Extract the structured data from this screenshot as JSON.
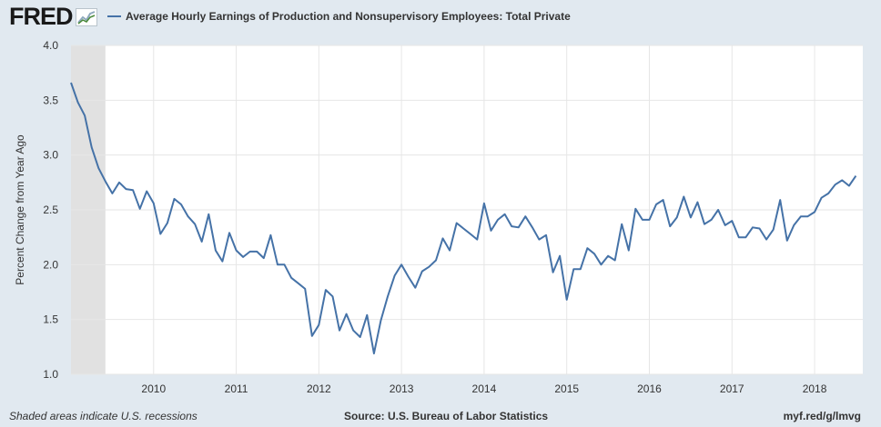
{
  "logo": {
    "text": "FRED",
    "icon": "chart-line-icon"
  },
  "legend": {
    "label": "Average Hourly Earnings of Production and Nonsupervisory Employees: Total Private",
    "color": "#4572a7"
  },
  "footer": {
    "recession_note": "Shaded areas indicate U.S. recessions",
    "source": "Source: U.S. Bureau of Labor Statistics",
    "url": "myf.red/g/lmvg"
  },
  "chart_data": {
    "type": "line",
    "title": "",
    "xlabel": "",
    "ylabel": "Percent Change from Year Ago",
    "xlim": [
      "2009-01",
      "2018-08"
    ],
    "ylim": [
      1.0,
      4.0
    ],
    "yticks": [
      "1.0",
      "1.5",
      "2.0",
      "2.5",
      "3.0",
      "3.5",
      "4.0"
    ],
    "xticks": [
      "2010",
      "2011",
      "2012",
      "2013",
      "2014",
      "2015",
      "2016",
      "2017",
      "2018"
    ],
    "grid": true,
    "recessions": [
      {
        "start": "2009-01",
        "end": "2009-06"
      }
    ],
    "series": [
      {
        "name": "Average Hourly Earnings of Production and Nonsupervisory Employees: Total Private",
        "color": "#4572a7",
        "start": "2009-01",
        "values": [
          3.66,
          3.48,
          3.36,
          3.07,
          2.88,
          2.76,
          2.65,
          2.75,
          2.69,
          2.68,
          2.51,
          2.67,
          2.56,
          2.28,
          2.38,
          2.6,
          2.55,
          2.44,
          2.37,
          2.21,
          2.46,
          2.13,
          2.03,
          2.29,
          2.13,
          2.07,
          2.12,
          2.12,
          2.06,
          2.27,
          2.0,
          2.0,
          1.88,
          1.83,
          1.78,
          1.35,
          1.45,
          1.77,
          1.71,
          1.4,
          1.55,
          1.4,
          1.34,
          1.54,
          1.19,
          1.49,
          1.71,
          1.9,
          2.0,
          1.89,
          1.79,
          1.94,
          1.98,
          2.04,
          2.24,
          2.13,
          2.38,
          2.33,
          2.28,
          2.23,
          2.56,
          2.31,
          2.41,
          2.46,
          2.35,
          2.34,
          2.44,
          2.34,
          2.23,
          2.27,
          1.93,
          2.08,
          1.68,
          1.96,
          1.96,
          2.15,
          2.1,
          2.0,
          2.08,
          2.04,
          2.37,
          2.13,
          2.51,
          2.41,
          2.41,
          2.55,
          2.59,
          2.35,
          2.43,
          2.62,
          2.43,
          2.57,
          2.37,
          2.41,
          2.5,
          2.36,
          2.4,
          2.25,
          2.25,
          2.34,
          2.33,
          2.23,
          2.32,
          2.59,
          2.22,
          2.36,
          2.44,
          2.44,
          2.48,
          2.61,
          2.65,
          2.73,
          2.77,
          2.72,
          2.81
        ]
      }
    ]
  }
}
